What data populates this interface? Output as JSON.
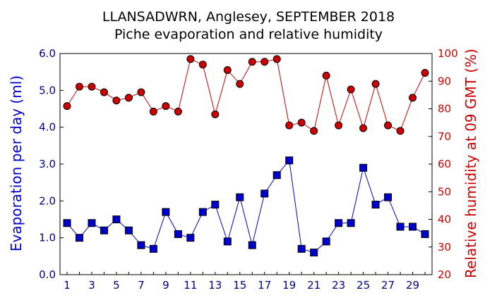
{
  "chart_data": {
    "type": "line",
    "title": "LLANSADWRN, Anglesey, SEPTEMBER 2018",
    "subtitle": "Piche evaporation and relative humidity",
    "xlabel": "",
    "ylabel_left": "Evaporation per day (ml)",
    "ylabel_right": "Relative humidity at 09 GMT (%)",
    "xlim": [
      1,
      30
    ],
    "ylim_left": [
      0,
      6
    ],
    "ylim_right": [
      20,
      100
    ],
    "x_ticks": [
      "1",
      "3",
      "5",
      "7",
      "9",
      "11",
      "13",
      "15",
      "17",
      "19",
      "21",
      "23",
      "25",
      "27",
      "29"
    ],
    "y_ticks_left": [
      "0.0",
      "1.0",
      "2.0",
      "3.0",
      "4.0",
      "5.0",
      "6.0"
    ],
    "y_ticks_right": [
      "20",
      "30",
      "40",
      "50",
      "60",
      "70",
      "80",
      "90",
      "100"
    ],
    "x": [
      1,
      2,
      3,
      4,
      5,
      6,
      7,
      8,
      9,
      10,
      11,
      12,
      13,
      14,
      15,
      16,
      17,
      18,
      19,
      20,
      21,
      22,
      23,
      24,
      25,
      26,
      27,
      28,
      29,
      30
    ],
    "series": [
      {
        "axis": "left",
        "color": "#0000CC",
        "marker": "square",
        "values": [
          1.4,
          1.0,
          1.4,
          1.2,
          1.5,
          1.2,
          0.8,
          0.7,
          1.7,
          1.1,
          1.0,
          1.7,
          1.9,
          0.9,
          2.1,
          0.8,
          2.2,
          2.7,
          3.1,
          0.7,
          0.6,
          0.9,
          1.4,
          1.4,
          2.9,
          1.9,
          2.1,
          1.3,
          1.3,
          1.1
        ]
      },
      {
        "axis": "right",
        "color": "#CC0000",
        "marker": "circle",
        "values": [
          81,
          88,
          88,
          86,
          83,
          84,
          86,
          79,
          81,
          79,
          98,
          96,
          78,
          94,
          89,
          97,
          97,
          98,
          74,
          75,
          72,
          92,
          74,
          87,
          73,
          89,
          74,
          72,
          84,
          93
        ]
      }
    ],
    "colors": {
      "left_axis": "#000080",
      "left_label": "#0000CC",
      "right_axis": "#CC0000",
      "frame": "#000000"
    }
  }
}
